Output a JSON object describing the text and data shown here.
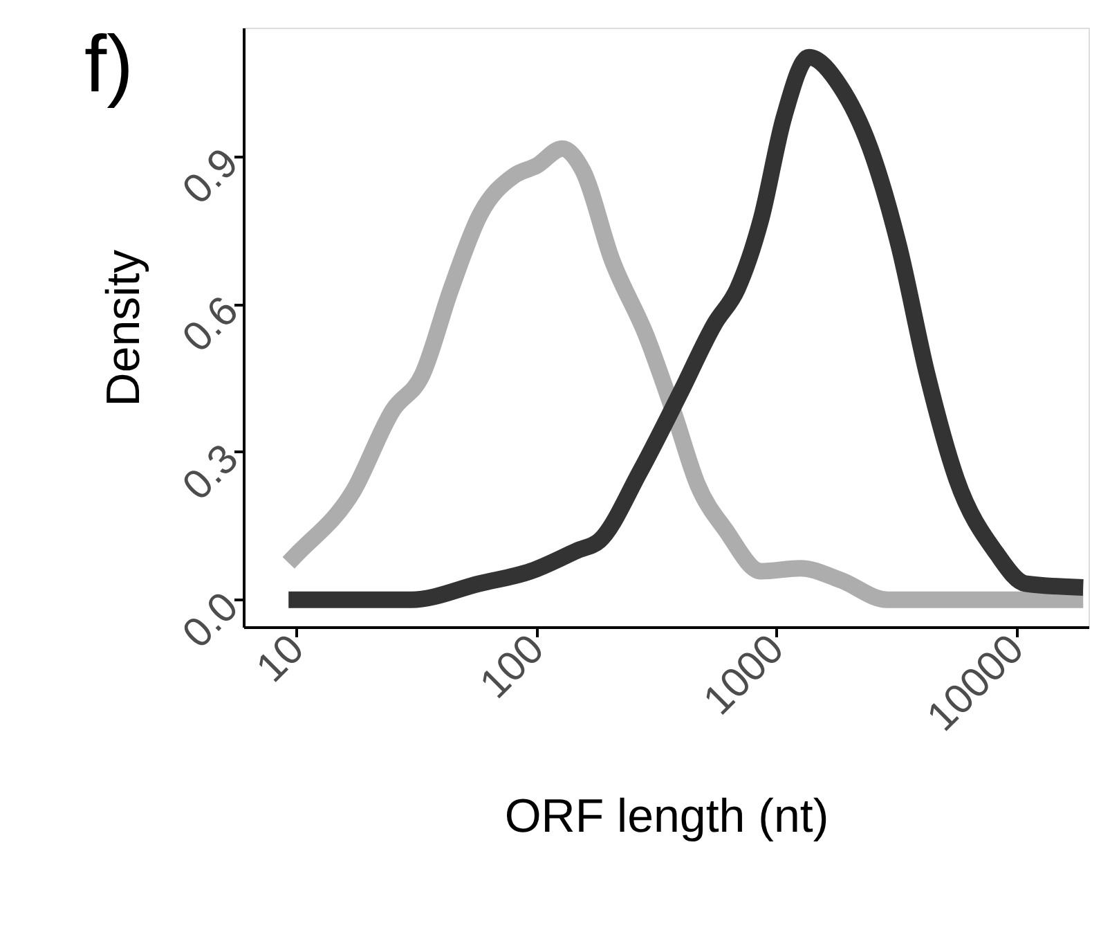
{
  "chart_data": {
    "type": "line",
    "xlabel": "ORF length (nt)",
    "ylabel": "Density",
    "annotations": [
      "f)"
    ],
    "log": "x",
    "grid": false,
    "marker": "none",
    "line_style": "solid",
    "xlim": [
      6,
      20000
    ],
    "xticks": [
      10,
      100,
      1000,
      10000
    ],
    "ylim": [
      -0.055,
      1.16
    ],
    "yticks": [
      {
        "value": 0,
        "label": "0.0"
      },
      {
        "value": 0.3,
        "label": "0.3"
      },
      {
        "value": 0.6,
        "label": "0.6"
      },
      {
        "value": 0.9,
        "label": "0.9"
      }
    ],
    "series": [
      {
        "color": "#adadad",
        "x": [
          9.25,
          9.9,
          17.2,
          25.2,
          33.3,
          44,
          58,
          80.7,
          100,
          128,
          156,
          206,
          287,
          376,
          468,
          617,
          861,
          1260,
          1850,
          2900,
          19000
        ],
        "values": [
          0.075,
          0.09,
          0.22,
          0.385,
          0.455,
          0.63,
          0.78,
          0.86,
          0.88,
          0.915,
          0.87,
          0.69,
          0.535,
          0.375,
          0.235,
          0.14,
          0.058,
          0.064,
          0.04,
          0.0,
          0.0
        ]
      },
      {
        "color": "#333333",
        "x": [
          9.25,
          30,
          58,
          94.6,
          148,
          183,
          270,
          398,
          553,
          687,
          861,
          1077,
          1365,
          1850,
          2440,
          3230,
          4260,
          5630,
          8250,
          10900,
          19000
        ],
        "values": [
          0.0,
          0.0,
          0.033,
          0.058,
          0.1,
          0.12,
          0.26,
          0.42,
          0.56,
          0.63,
          0.77,
          0.98,
          1.1,
          1.04,
          0.92,
          0.72,
          0.455,
          0.245,
          0.095,
          0.033,
          0.025
        ]
      }
    ]
  }
}
